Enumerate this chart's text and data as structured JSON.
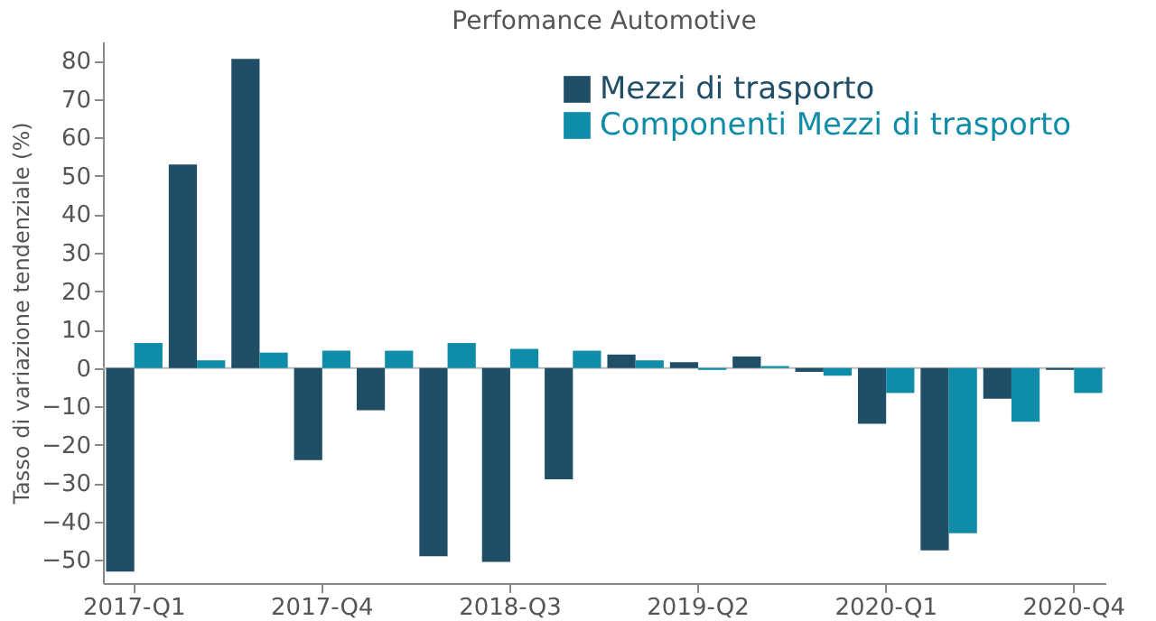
{
  "chart_data": {
    "type": "bar",
    "title": "Perfomance Automotive",
    "ylabel": "Tasso di variazione tendenziale (%)",
    "categories": [
      "2017-Q1",
      null,
      null,
      "2017-Q4",
      null,
      null,
      "2018-Q3",
      null,
      null,
      "2019-Q2",
      null,
      null,
      "2020-Q1",
      null,
      null,
      "2020-Q4"
    ],
    "series": [
      {
        "name": "Mezzi di trasporto",
        "color": "#1f4e66",
        "values": [
          -53,
          53,
          80.5,
          -24,
          -11,
          -49,
          -50.5,
          -29,
          3.5,
          1.5,
          3,
          -1,
          -14.5,
          -47.5,
          -8,
          -0.5
        ]
      },
      {
        "name": "Componenti Mezzi di trasporto",
        "color": "#0e8ca8",
        "values": [
          6.5,
          2,
          4,
          4.5,
          4.5,
          6.5,
          5,
          4.5,
          2,
          -0.5,
          0.5,
          -2,
          -6.5,
          -43,
          -14,
          -6.5
        ]
      }
    ],
    "ylim": [
      -56,
      85
    ],
    "yticks": [
      -50,
      -40,
      -30,
      -20,
      -10,
      0,
      10,
      20,
      30,
      40,
      50,
      60,
      70,
      80
    ],
    "ref_lines": [
      {
        "axis": "y",
        "value": 0,
        "color": "#bbbbbb"
      }
    ],
    "grid": false,
    "legend": "top right"
  }
}
